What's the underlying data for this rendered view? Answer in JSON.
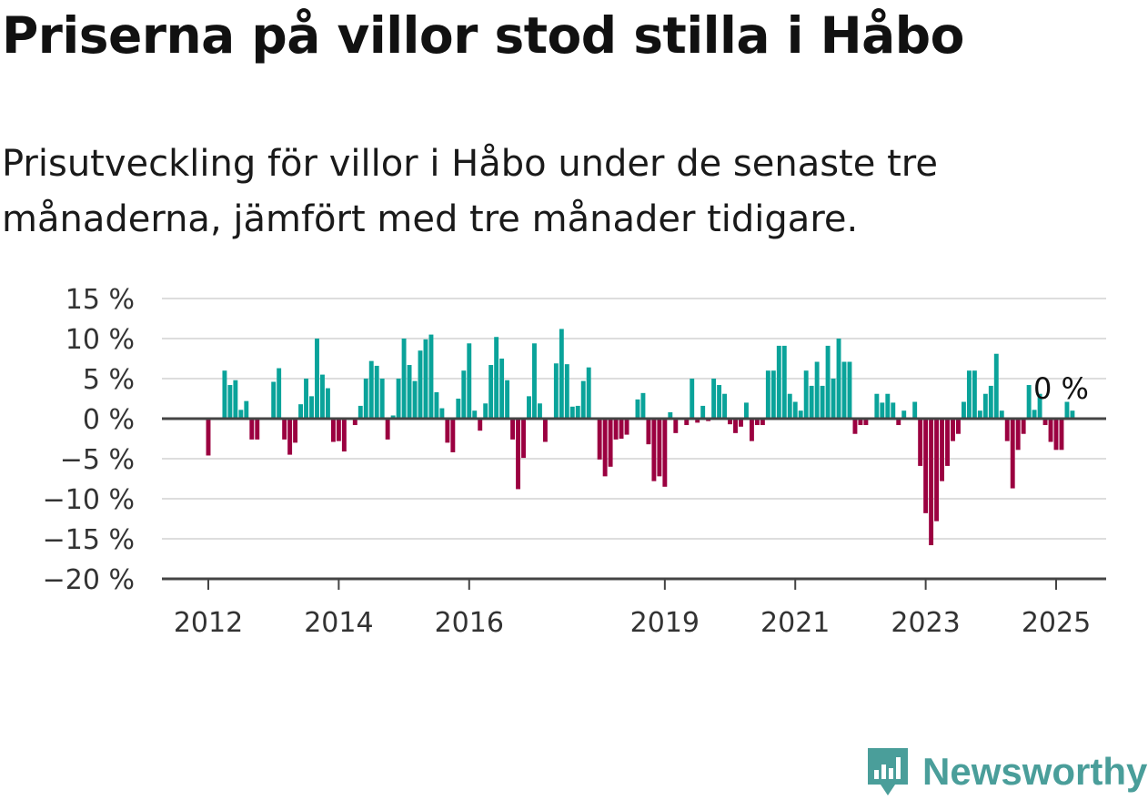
{
  "title": "Priserna på villor stod stilla i Håbo",
  "subtitle": "Prisutveckling för villor i Håbo under de senaste tre månaderna, jämfört med tre månader tidigare.",
  "brand": {
    "name": "Newsworthy",
    "icon": "newsworthy-logo-icon",
    "color": "#4a9e9a"
  },
  "colors": {
    "positive": "#0aa39a",
    "negative": "#9b0040",
    "grid": "#dddddd",
    "axis": "#444444"
  },
  "chart_data": {
    "type": "bar",
    "title": "Priserna på villor stod stilla i Håbo",
    "subtitle": "Prisutveckling för villor i Håbo under de senaste tre månaderna, jämfört med tre månader tidigare.",
    "x_unit": "month",
    "x_start": "2012-01",
    "x_end": "2025-01",
    "x_tick_labels": [
      "2012",
      "2014",
      "2016",
      "2019",
      "2021",
      "2023",
      "2025"
    ],
    "y_ticks": [
      15,
      10,
      5,
      0,
      -5,
      -10,
      -15,
      -20
    ],
    "y_tick_labels": [
      "15 %",
      "10 %",
      "5 %",
      "0 %",
      "−5 %",
      "−10 %",
      "−15 %",
      "−20 %"
    ],
    "ylim": [
      -20,
      15
    ],
    "grid": true,
    "annotation": "0 %",
    "values": [
      -4.6,
      0,
      0,
      6,
      4.2,
      4.8,
      1.1,
      2.2,
      -2.6,
      -2.6,
      0,
      0,
      4.6,
      6.3,
      -2.6,
      -4.5,
      -3,
      1.8,
      5,
      2.8,
      10,
      5.5,
      3.8,
      -2.9,
      -2.8,
      -4.1,
      0,
      -0.8,
      1.6,
      5,
      7.2,
      6.6,
      5,
      -2.6,
      0.4,
      5,
      10,
      6.7,
      4.7,
      8.5,
      9.9,
      10.5,
      3.3,
      1.3,
      -3,
      -4.2,
      2.5,
      6,
      9.4,
      1,
      -1.5,
      1.9,
      6.7,
      10.2,
      7.5,
      4.8,
      -2.6,
      -8.8,
      -4.9,
      2.8,
      9.4,
      1.9,
      -2.9,
      0,
      6.9,
      11.2,
      6.8,
      1.5,
      1.6,
      4.7,
      6.4,
      0,
      -5.1,
      -7.2,
      -6,
      -2.6,
      -2.5,
      -2,
      0,
      2.4,
      3.2,
      -3.2,
      -7.8,
      -7.2,
      -8.5,
      0.8,
      -1.8,
      0,
      -0.8,
      5,
      -0.5,
      1.6,
      -0.3,
      5,
      4.2,
      3.1,
      -0.7,
      -1.8,
      -1,
      2,
      -2.8,
      -0.8,
      -0.8,
      6,
      6,
      9.1,
      9.1,
      3.1,
      2.1,
      1,
      6,
      4.1,
      7.1,
      4.1,
      9.1,
      5,
      10,
      7.1,
      7.1,
      -1.9,
      -0.8,
      -0.8,
      0,
      3.1,
      2,
      3.1,
      2,
      -0.8,
      1,
      0,
      2.1,
      -5.9,
      -11.8,
      -15.8,
      -12.8,
      -7.8,
      -5.9,
      -2.8,
      -1.9,
      2.1,
      6,
      6,
      1,
      3.1,
      4.1,
      8.1,
      1,
      -2.8,
      -8.7,
      -3.9,
      -1.9,
      4.2,
      1.1,
      3.1,
      -0.8,
      -2.9,
      -3.9,
      -3.9,
      2.1,
      1,
      0
    ]
  }
}
